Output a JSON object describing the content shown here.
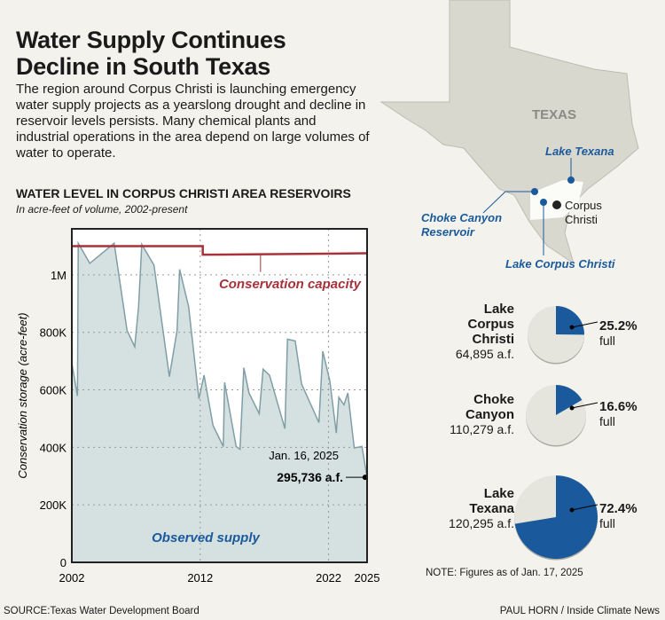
{
  "header": {
    "title": "Water Supply Continues Decline in South Texas",
    "intro": "The region around Corpus Christi is launching emergency water supply projects as a yearslong drought and decline in reservoir levels persists. Many chemical plants and industrial operations in the area depend on large volumes of water to operate."
  },
  "chart_data": [
    {
      "type": "area",
      "title": "WATER LEVEL IN CORPUS CHRISTI AREA RESERVOIRS",
      "subtitle": "In acre-feet of volume, 2002-present",
      "ylabel": "Conservation storage (acre-feet)",
      "xlabel": "",
      "xlim": [
        2002,
        2025
      ],
      "ylim": [
        0,
        1160000
      ],
      "x_ticks": [
        2002,
        2012,
        2022,
        2025
      ],
      "x_tick_labels": [
        "2002",
        "2012",
        "2022",
        "2025"
      ],
      "y_ticks": [
        0,
        200000,
        400000,
        600000,
        800000,
        1000000
      ],
      "y_tick_labels": [
        "0",
        "200K",
        "400K",
        "600K",
        "800K",
        "1M"
      ],
      "grid": "dotted",
      "series": [
        {
          "name": "Observed supply",
          "color": "#7f9ea6",
          "fill": "#d5e0e1",
          "x": [
            2002.0,
            2002.44,
            2002.5,
            2003.4,
            2005.3,
            2006.3,
            2006.9,
            2007.2,
            2007.45,
            2008.4,
            2009.6,
            2009.85,
            2010.2,
            2010.4,
            2011.1,
            2011.9,
            2012.3,
            2013.0,
            2013.8,
            2013.9,
            2014.8,
            2015.1,
            2015.4,
            2015.8,
            2016.6,
            2016.9,
            2017.4,
            2018.6,
            2018.8,
            2019.4,
            2019.9,
            2021.25,
            2021.55,
            2022.1,
            2022.6,
            2022.8,
            2023.2,
            2023.5,
            2024.0,
            2024.6,
            2025.0
          ],
          "y": [
            693000,
            579000,
            1110000,
            1040000,
            1110000,
            807000,
            750000,
            889000,
            1106000,
            1034000,
            646000,
            713000,
            807000,
            1019000,
            889000,
            569000,
            651000,
            476000,
            403000,
            626000,
            403000,
            393000,
            677000,
            589000,
            517000,
            672000,
            651000,
            465000,
            776000,
            770000,
            620000,
            486000,
            734000,
            631000,
            450000,
            574000,
            548000,
            589000,
            398000,
            403000,
            295736
          ]
        },
        {
          "name": "Conservation capacity",
          "color": "#a8323a",
          "x": [
            2002,
            2012.2,
            2012.2,
            2025
          ],
          "y": [
            1100000,
            1100000,
            1070000,
            1075000
          ]
        }
      ],
      "annotations": {
        "capacity": "Conservation capacity",
        "supply": "Observed supply",
        "latest_date": "Jan. 16, 2025",
        "latest_value": "295,736 a.f."
      }
    },
    {
      "type": "pie",
      "reservoirs": [
        {
          "name_lines": [
            "Lake",
            "Corpus",
            "Christi"
          ],
          "volume": "64,895 a.f.",
          "percent": 25.2,
          "percent_label": "25.2%",
          "full_label": "full"
        },
        {
          "name_lines": [
            "Choke",
            "Canyon"
          ],
          "volume": "110,279 a.f.",
          "percent": 16.6,
          "percent_label": "16.6%",
          "full_label": "full"
        },
        {
          "name_lines": [
            "Lake",
            "Texana"
          ],
          "volume": "120,295 a.f.",
          "percent": 72.4,
          "percent_label": "72.4%",
          "full_label": "full"
        }
      ],
      "colors": {
        "filled": "#1a5a9c",
        "empty": "#e6e5dd"
      }
    }
  ],
  "map": {
    "state": "TEXAS",
    "labels": {
      "texana": "Lake Texana",
      "choke1": "Choke Canyon",
      "choke2": "Reservoir",
      "lcc": "Lake Corpus Christi",
      "cc1": "Corpus",
      "cc2": "Christi"
    }
  },
  "footer": {
    "note": "NOTE: Figures as of Jan. 17, 2025",
    "source": "SOURCE:Texas Water Development Board",
    "credit": "PAUL HORN / Inside Climate News"
  }
}
